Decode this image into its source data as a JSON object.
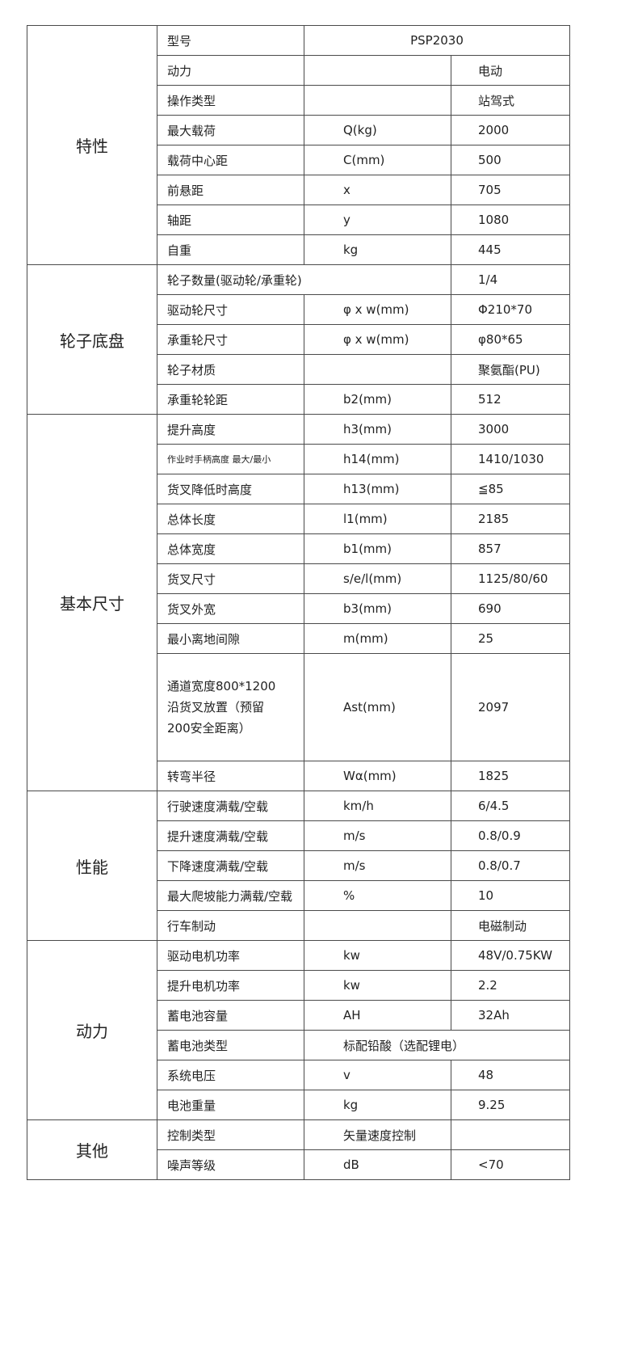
{
  "groups": [
    {
      "category": "特性",
      "rows": [
        {
          "label": "型号",
          "value": "PSP2030",
          "merge": "unit-value"
        },
        {
          "label": "动力",
          "unit": "",
          "value": "电动"
        },
        {
          "label": "操作类型",
          "unit": "",
          "value": "站驾式"
        },
        {
          "label": "最大载荷",
          "unit": "Q(kg)",
          "value": "2000"
        },
        {
          "label": "载荷中心距",
          "unit": "C(mm)",
          "value": "500"
        },
        {
          "label": "前悬距",
          "unit": "x",
          "value": "705"
        },
        {
          "label": "轴距",
          "unit": "y",
          "value": "1080"
        },
        {
          "label": "自重",
          "unit": "kg",
          "value": "445"
        }
      ]
    },
    {
      "category": "轮子底盘",
      "rows": [
        {
          "label": "轮子数量(驱动轮/承重轮)",
          "value": "1/4",
          "merge": "label-unit"
        },
        {
          "label": "驱动轮尺寸",
          "unit": "φ x w(mm)",
          "value": "Φ210*70"
        },
        {
          "label": "承重轮尺寸",
          "unit": "φ x w(mm)",
          "value": "φ80*65"
        },
        {
          "label": "轮子材质",
          "unit": "",
          "value": "聚氨酯(PU)"
        },
        {
          "label": "承重轮轮距",
          "unit": "b2(mm)",
          "value": "512"
        }
      ]
    },
    {
      "category": "基本尺寸",
      "rows": [
        {
          "label": "提升高度",
          "unit": "h3(mm)",
          "value": "3000"
        },
        {
          "label": "作业时手柄高度  最大/最小",
          "unit": "h14(mm)",
          "value": "1410/1030"
        },
        {
          "label": "货叉降低时高度",
          "unit": "h13(mm)",
          "value": "≦85"
        },
        {
          "label": "总体长度",
          "unit": "l1(mm)",
          "value": "2185"
        },
        {
          "label": "总体宽度",
          "unit": "b1(mm)",
          "value": "857"
        },
        {
          "label": "货叉尺寸",
          "unit": "s/e/l(mm)",
          "value": "1125/80/60"
        },
        {
          "label": "货叉外宽",
          "unit": "b3(mm)",
          "value": "690"
        },
        {
          "label": "最小离地间隙",
          "unit": "m(mm)",
          "value": "25"
        },
        {
          "label": "通道宽度800*1200\n沿货叉放置（预留\n200安全距离）",
          "unit": "Ast(mm)",
          "value": "2097"
        },
        {
          "label": "转弯半径",
          "unit": "Wα(mm)",
          "value": "1825"
        }
      ]
    },
    {
      "category": "性能",
      "rows": [
        {
          "label": "行驶速度满载/空载",
          "unit": "km/h",
          "value": "6/4.5"
        },
        {
          "label": "提升速度满载/空载",
          "unit": "m/s",
          "value": "0.8/0.9"
        },
        {
          "label": "下降速度满载/空载",
          "unit": "m/s",
          "value": "0.8/0.7"
        },
        {
          "label": "最大爬坡能力满载/空载",
          "unit": "%",
          "value": "10"
        },
        {
          "label": "行车制动",
          "unit": "",
          "value": "电磁制动"
        }
      ]
    },
    {
      "category": "动力",
      "rows": [
        {
          "label": "驱动电机功率",
          "unit": "kw",
          "value": "48V/0.75KW"
        },
        {
          "label": "提升电机功率",
          "unit": "kw",
          "value": "2.2"
        },
        {
          "label": "蓄电池容量",
          "unit": "AH",
          "value": "32Ah"
        },
        {
          "label": "蓄电池类型",
          "unit": "标配铅酸（选配锂电）",
          "merge": "unit-value"
        },
        {
          "label": "系统电压",
          "unit": "v",
          "value": "48"
        },
        {
          "label": "电池重量",
          "unit": "kg",
          "value": "9.25"
        }
      ]
    },
    {
      "category": "其他",
      "rows": [
        {
          "label": "控制类型",
          "unit": "矢量速度控制",
          "value": ""
        },
        {
          "label": "噪声等级",
          "unit": "dB",
          "value": "<70"
        }
      ]
    }
  ]
}
